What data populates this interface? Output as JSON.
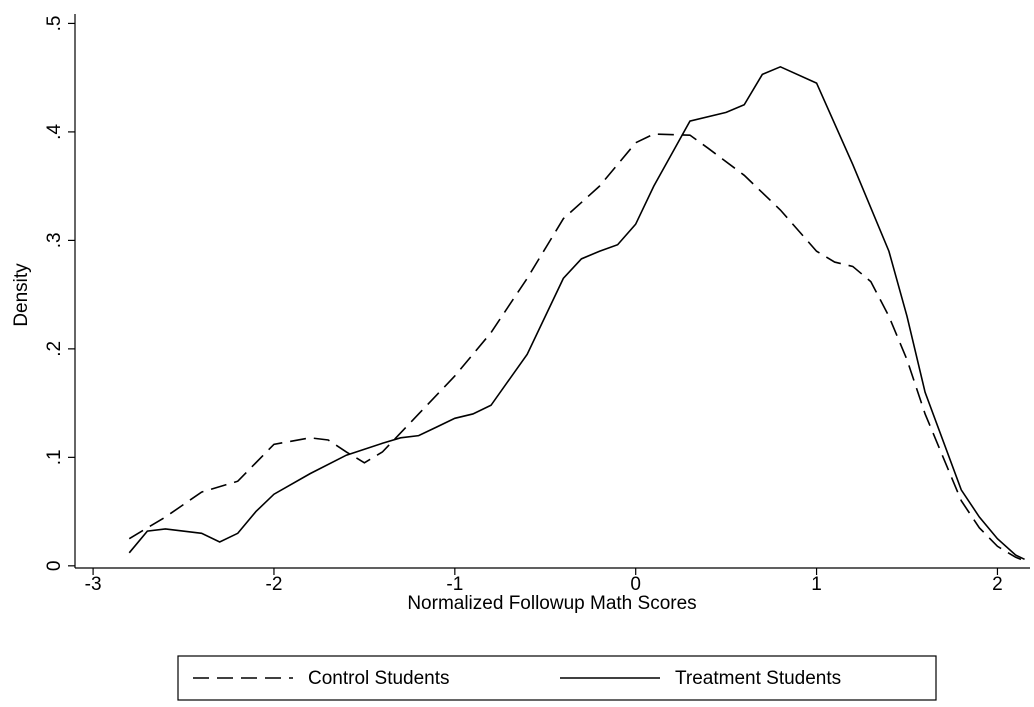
{
  "chart_data": {
    "type": "line",
    "xlabel": "Normalized Followup Math Scores",
    "ylabel": "Density",
    "xlim": [
      -3.1,
      2.18
    ],
    "ylim": [
      -0.002,
      0.505
    ],
    "xticks": [
      -3,
      -2,
      -1,
      0,
      1,
      2
    ],
    "yticks": [
      0,
      {
        "value": 0.1,
        "label": ".1"
      },
      {
        "value": 0.2,
        "label": ".2"
      },
      {
        "value": 0.3,
        "label": ".3"
      },
      {
        "value": 0.4,
        "label": ".4"
      },
      {
        "value": 0.5,
        "label": ".5"
      }
    ],
    "legend": "bottom",
    "series": [
      {
        "name": "Control Students",
        "color": "#000000",
        "style": "dashed",
        "x": [
          -2.8,
          -2.6,
          -2.4,
          -2.2,
          -2.0,
          -1.8,
          -1.7,
          -1.6,
          -1.5,
          -1.4,
          -1.2,
          -1.0,
          -0.8,
          -0.6,
          -0.4,
          -0.2,
          0,
          0.1,
          0.3,
          0.4,
          0.6,
          0.8,
          1.0,
          1.1,
          1.2,
          1.3,
          1.4,
          1.5,
          1.6,
          1.8,
          1.9,
          2.0,
          2.1,
          2.13
        ],
        "values": [
          0.025,
          0.045,
          0.068,
          0.078,
          0.112,
          0.118,
          0.116,
          0.105,
          0.095,
          0.105,
          0.14,
          0.175,
          0.215,
          0.265,
          0.32,
          0.35,
          0.39,
          0.398,
          0.397,
          0.385,
          0.36,
          0.328,
          0.29,
          0.28,
          0.276,
          0.262,
          0.23,
          0.19,
          0.14,
          0.06,
          0.035,
          0.018,
          0.008,
          0.006
        ]
      },
      {
        "name": "Treatment Students",
        "color": "#000000",
        "style": "solid",
        "x": [
          -2.8,
          -2.7,
          -2.6,
          -2.4,
          -2.3,
          -2.2,
          -2.1,
          -2.0,
          -1.8,
          -1.6,
          -1.4,
          -1.3,
          -1.2,
          -1.1,
          -1.0,
          -0.9,
          -0.8,
          -0.6,
          -0.4,
          -0.3,
          -0.2,
          -0.1,
          0,
          0.1,
          0.2,
          0.3,
          0.5,
          0.6,
          0.7,
          0.8,
          1.0,
          1.2,
          1.4,
          1.5,
          1.6,
          1.8,
          1.9,
          2.0,
          2.1,
          2.15
        ],
        "values": [
          0.012,
          0.032,
          0.034,
          0.03,
          0.022,
          0.03,
          0.05,
          0.066,
          0.085,
          0.102,
          0.113,
          0.118,
          0.12,
          0.128,
          0.136,
          0.14,
          0.148,
          0.195,
          0.265,
          0.283,
          0.29,
          0.296,
          0.315,
          0.35,
          0.38,
          0.41,
          0.418,
          0.425,
          0.453,
          0.46,
          0.445,
          0.37,
          0.29,
          0.23,
          0.16,
          0.07,
          0.045,
          0.025,
          0.01,
          0.006
        ]
      }
    ]
  }
}
